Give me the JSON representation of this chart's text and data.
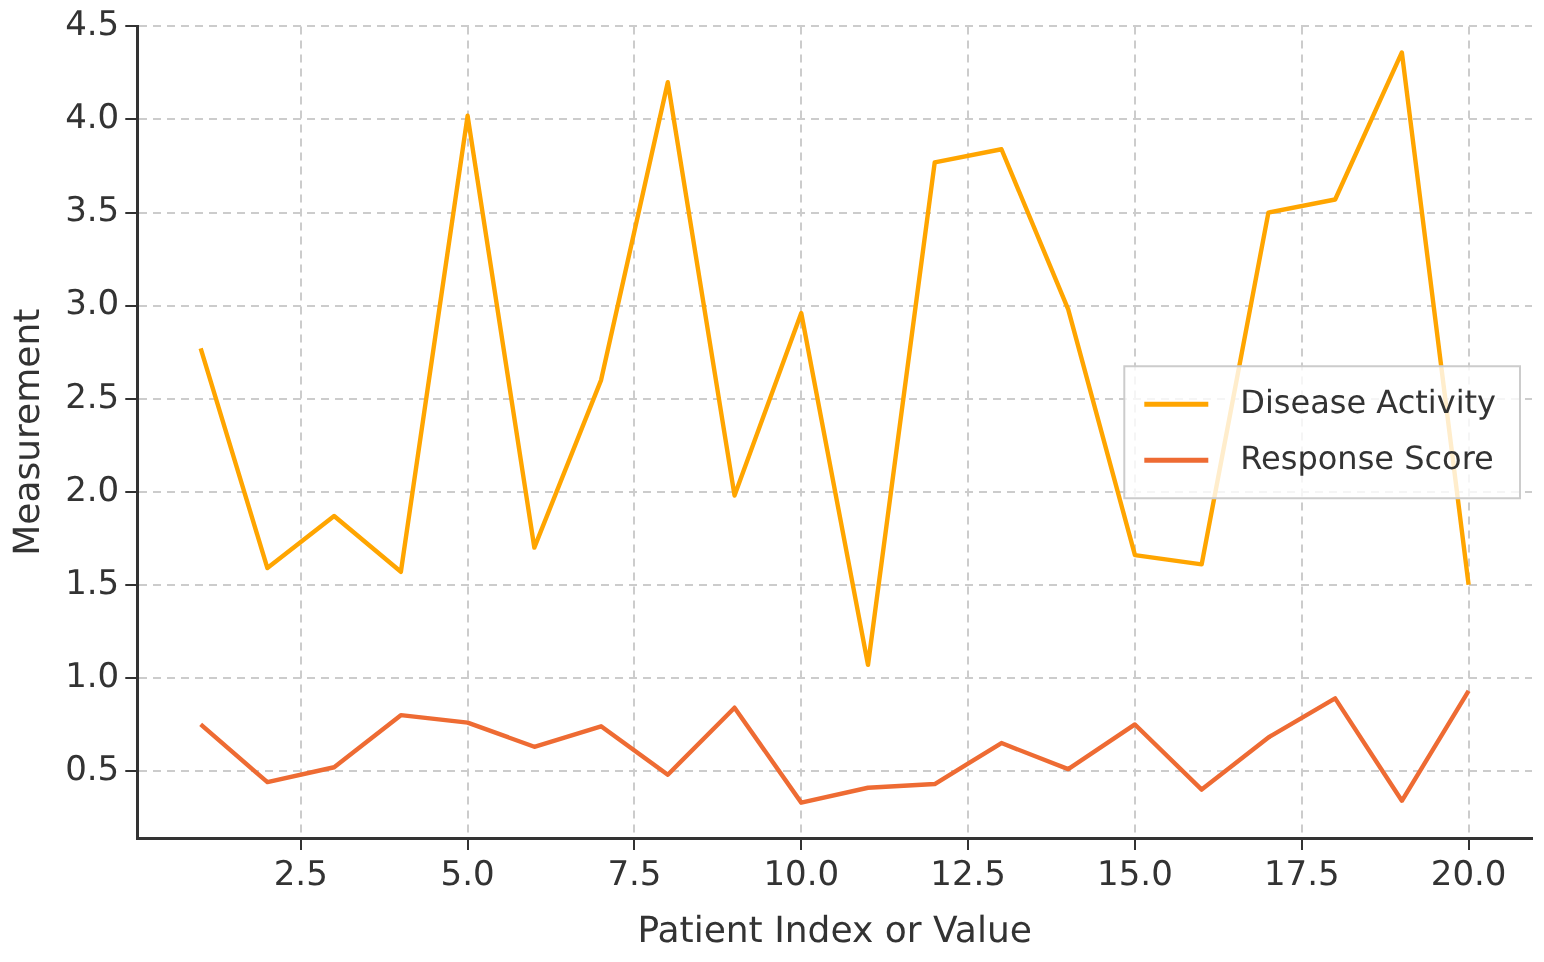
{
  "chart_data": {
    "type": "line",
    "xlabel": "Patient Index or Value",
    "ylabel": "Measurement",
    "x": [
      1,
      2,
      3,
      4,
      5,
      6,
      7,
      8,
      9,
      10,
      11,
      12,
      13,
      14,
      15,
      16,
      17,
      18,
      19,
      20
    ],
    "series": [
      {
        "name": "Disease Activity",
        "color": "#ffa500",
        "values": [
          2.77,
          1.59,
          1.87,
          1.57,
          4.02,
          1.7,
          2.6,
          4.2,
          1.98,
          2.96,
          1.07,
          3.77,
          3.84,
          2.98,
          1.66,
          1.61,
          3.5,
          3.57,
          4.36,
          1.5
        ]
      },
      {
        "name": "Response Score",
        "color": "#ee6b33",
        "values": [
          0.75,
          0.44,
          0.52,
          0.8,
          0.76,
          0.63,
          0.74,
          0.48,
          0.84,
          0.33,
          0.41,
          0.43,
          0.65,
          0.51,
          0.75,
          0.4,
          0.68,
          0.89,
          0.34,
          0.93
        ]
      }
    ],
    "xlim": [
      0.05,
      20.95
    ],
    "xticks": [
      {
        "value": 2.5,
        "label": "2.5"
      },
      {
        "value": 5,
        "label": "5.0"
      },
      {
        "value": 7.5,
        "label": "7.5"
      },
      {
        "value": 10,
        "label": "10.0"
      },
      {
        "value": 12.5,
        "label": "12.5"
      },
      {
        "value": 15,
        "label": "15.0"
      },
      {
        "value": 17.5,
        "label": "17.5"
      },
      {
        "value": 20,
        "label": "20.0"
      }
    ],
    "ylim": [
      0.14,
      4.5
    ],
    "yticks": [
      0.5,
      {
        "value": 1,
        "label": "1.0"
      },
      1.5,
      {
        "value": 2,
        "label": "2.0"
      },
      2.5,
      {
        "value": 3,
        "label": "3.0"
      },
      3.5,
      {
        "value": 4,
        "label": "4.0"
      },
      4.5
    ],
    "grid": true,
    "legend": "right",
    "marker": "none",
    "line_style": "solid"
  }
}
